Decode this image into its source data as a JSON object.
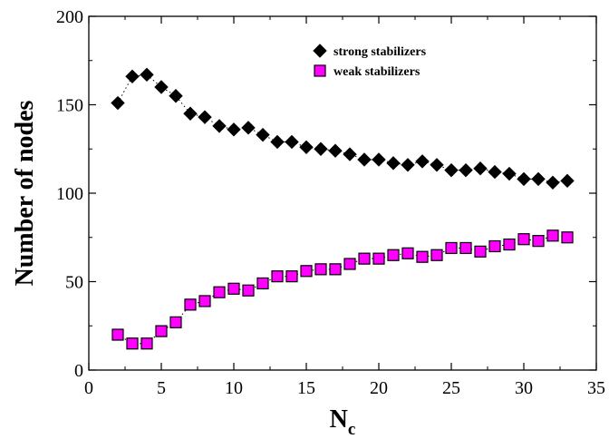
{
  "chart_data": {
    "type": "scatter",
    "xlabel": "N",
    "xlabel_sub": "c",
    "ylabel": "Number of nodes",
    "xlim": [
      0,
      35
    ],
    "ylim": [
      0,
      200
    ],
    "xticks": [
      0,
      5,
      10,
      15,
      20,
      25,
      30,
      35
    ],
    "yticks": [
      0,
      50,
      100,
      150,
      200
    ],
    "xtick_labels": [
      "0",
      "5",
      "10",
      "15",
      "20",
      "25",
      "30",
      "35"
    ],
    "ytick_labels": [
      "0",
      "50",
      "100",
      "150",
      "200"
    ],
    "grid": false,
    "legend_position": "top-right",
    "series": [
      {
        "name": "strong stabilizers",
        "marker": "diamond",
        "color": "#000000",
        "line": "dotted",
        "x": [
          2,
          3,
          4,
          5,
          6,
          7,
          8,
          9,
          10,
          11,
          12,
          13,
          14,
          15,
          16,
          17,
          18,
          19,
          20,
          21,
          22,
          23,
          24,
          25,
          26,
          27,
          28,
          29,
          30,
          31,
          32,
          33
        ],
        "y": [
          151,
          166,
          167,
          160,
          155,
          145,
          143,
          138,
          136,
          137,
          133,
          129,
          129,
          126,
          125,
          124,
          122,
          119,
          119,
          117,
          116,
          118,
          116,
          113,
          113,
          114,
          112,
          111,
          108,
          108,
          106,
          107
        ]
      },
      {
        "name": "weak stabilizers",
        "marker": "square",
        "color": "#ff00ff",
        "line": "dotted",
        "x": [
          2,
          3,
          4,
          5,
          6,
          7,
          8,
          9,
          10,
          11,
          12,
          13,
          14,
          15,
          16,
          17,
          18,
          19,
          20,
          21,
          22,
          23,
          24,
          25,
          26,
          27,
          28,
          29,
          30,
          31,
          32,
          33
        ],
        "y": [
          20,
          15,
          15,
          22,
          27,
          37,
          39,
          44,
          46,
          45,
          49,
          53,
          53,
          56,
          57,
          57,
          60,
          63,
          63,
          65,
          66,
          64,
          65,
          69,
          69,
          67,
          70,
          71,
          74,
          73,
          76,
          75
        ]
      }
    ]
  }
}
